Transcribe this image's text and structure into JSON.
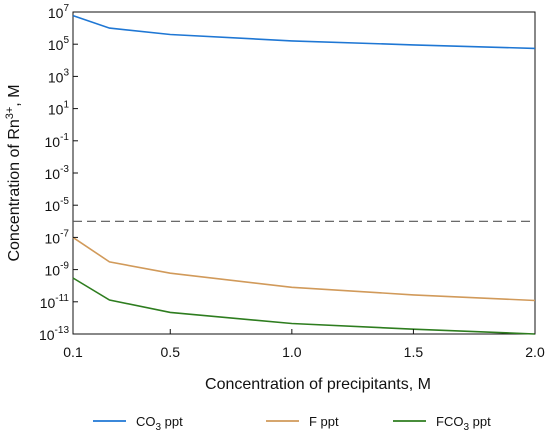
{
  "chart_data": {
    "type": "line",
    "xlabel": "Concentration of precipitants, M",
    "ylabel": {
      "base": "Concentration of Rn",
      "sup": "3+",
      "tail": ", M"
    },
    "xlim": [
      0.1,
      2.0
    ],
    "ylim_log10": [
      -13,
      7
    ],
    "y_scale": "log",
    "x_ticks": [
      {
        "value": 0.1,
        "label": "0.1"
      },
      {
        "value": 0.5,
        "label": "0.5"
      },
      {
        "value": 1.0,
        "label": "1.0"
      },
      {
        "value": 1.5,
        "label": "1.5"
      },
      {
        "value": 2.0,
        "label": "2.0"
      }
    ],
    "y_ticks": [
      {
        "exp": 7,
        "mantissa": "10",
        "sup": "7"
      },
      {
        "exp": 5,
        "mantissa": "10",
        "sup": "5"
      },
      {
        "exp": 3,
        "mantissa": "10",
        "sup": "3"
      },
      {
        "exp": 1,
        "mantissa": "10",
        "sup": "1"
      },
      {
        "exp": -1,
        "mantissa": "10",
        "sup": "-1"
      },
      {
        "exp": -3,
        "mantissa": "10",
        "sup": "-3"
      },
      {
        "exp": -5,
        "mantissa": "10",
        "sup": "-5"
      },
      {
        "exp": -7,
        "mantissa": "10",
        "sup": "-7"
      },
      {
        "exp": -9,
        "mantissa": "10",
        "sup": "-9"
      },
      {
        "exp": -11,
        "mantissa": "10",
        "sup": "-11"
      },
      {
        "exp": -13,
        "mantissa": "10",
        "sup": "-13"
      }
    ],
    "grid": false,
    "legend_placement": "bottom",
    "reference_line": {
      "y": 1e-06,
      "style": "dashed",
      "color": "#555555"
    },
    "series": [
      {
        "name": "CO3 ppt",
        "legend": {
          "base": "CO",
          "sub": "3",
          "tail": " ppt"
        },
        "color": "#1f77d4",
        "x": [
          0.1,
          0.25,
          0.5,
          1.0,
          1.5,
          2.0
        ],
        "y": [
          6000000.0,
          1000000.0,
          400000.0,
          160000.0,
          90000.0,
          55000.0
        ]
      },
      {
        "name": "F ppt",
        "legend": {
          "base": "F ppt",
          "sub": "",
          "tail": ""
        },
        "color": "#d19a5a",
        "x": [
          0.1,
          0.25,
          0.5,
          1.0,
          1.5,
          2.0
        ],
        "y": [
          1e-07,
          3e-09,
          6e-10,
          8e-11,
          2.7e-11,
          1.2e-11
        ]
      },
      {
        "name": "FCO3 ppt",
        "legend": {
          "base": "FCO",
          "sub": "3",
          "tail": " ppt"
        },
        "color": "#2e7d1f",
        "x": [
          0.1,
          0.25,
          0.5,
          1.0,
          1.5,
          2.0
        ],
        "y": [
          3e-10,
          1.3e-11,
          2.2e-12,
          4.5e-13,
          2e-13,
          1e-13
        ]
      }
    ]
  }
}
